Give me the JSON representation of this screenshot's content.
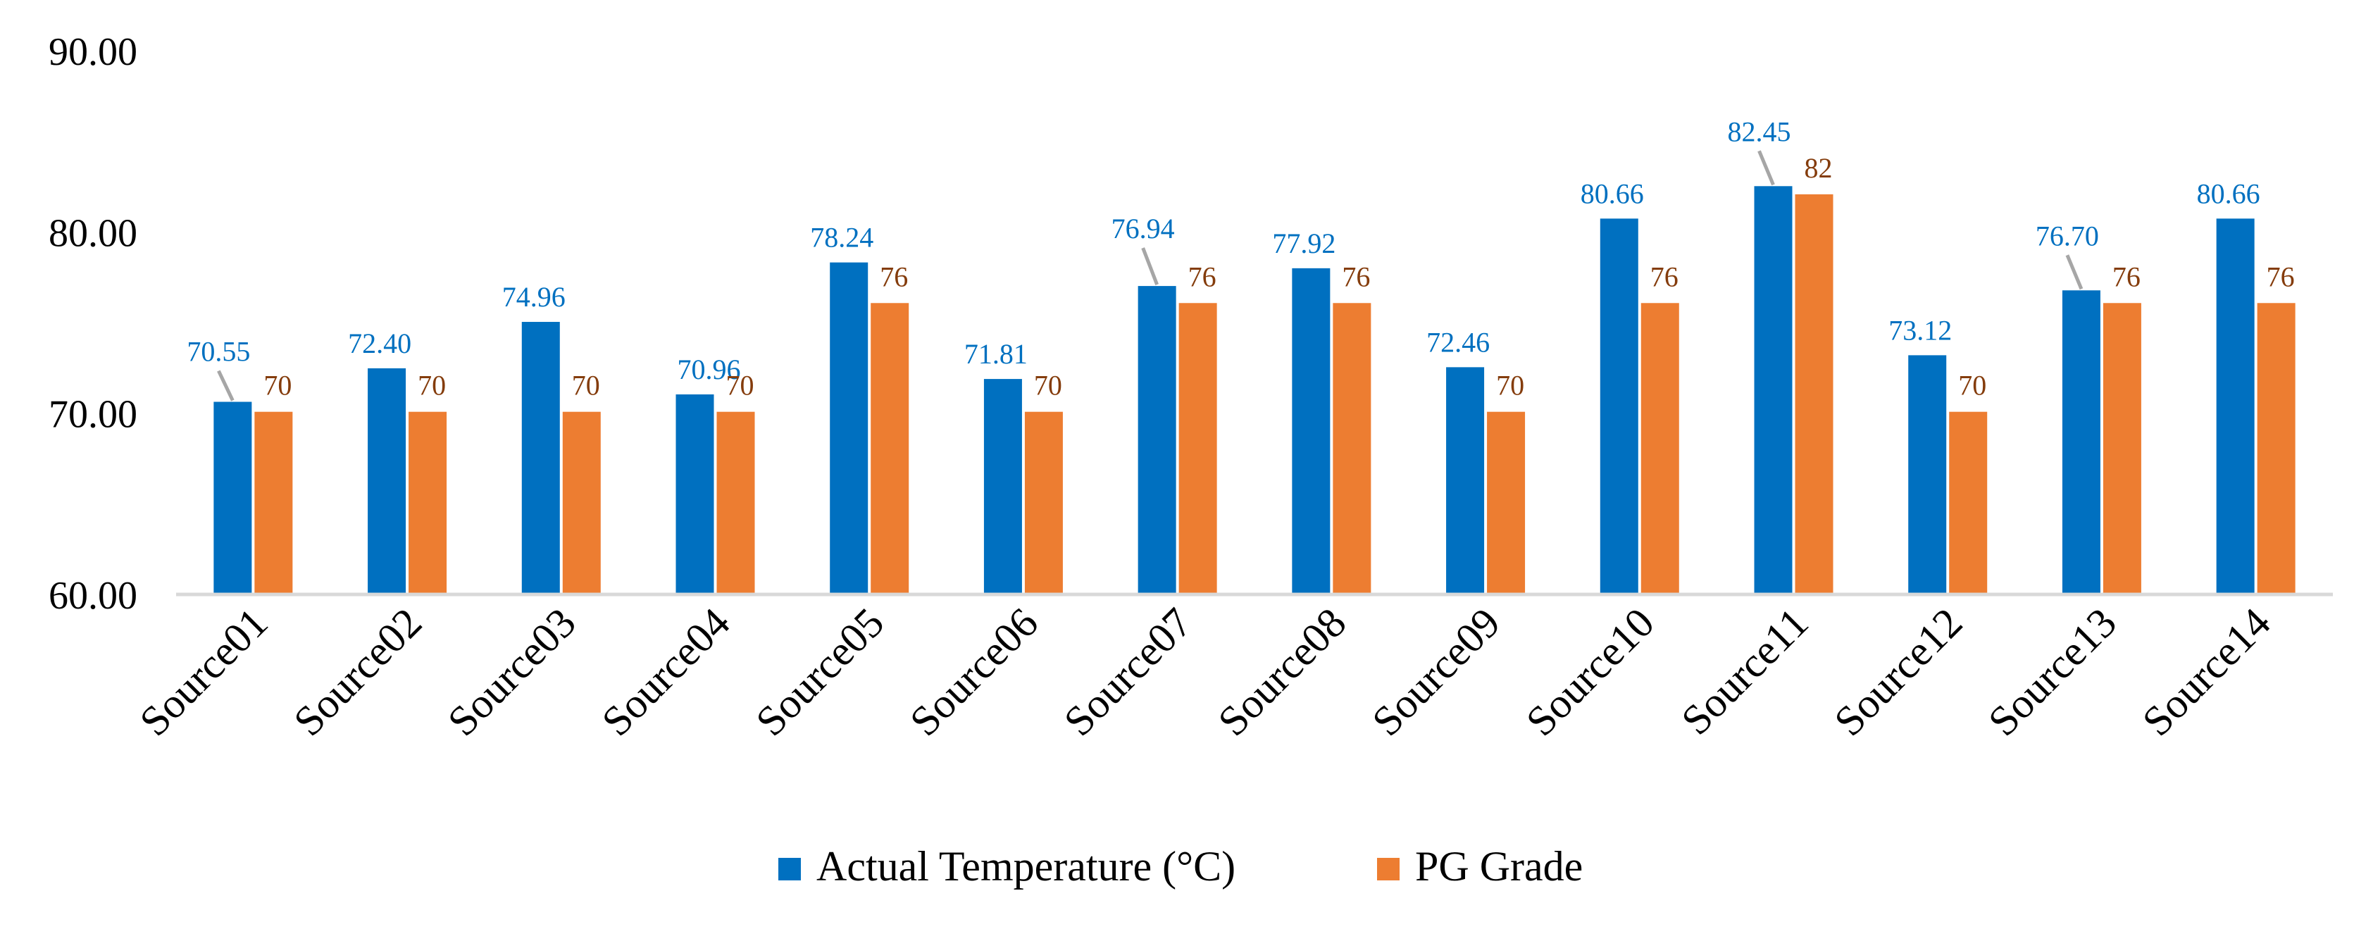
{
  "chart_data": {
    "type": "bar",
    "title": "",
    "xlabel": "",
    "ylabel": "",
    "ylim": [
      60,
      90
    ],
    "yticks": [
      60,
      70,
      80,
      90
    ],
    "ytick_labels": [
      "60.00",
      "70.00",
      "80.00",
      "90.00"
    ],
    "grid": false,
    "legend_position": "bottom-center",
    "categories": [
      "Source01",
      "Source02",
      "Source03",
      "Source04",
      "Source05",
      "Source06",
      "Source07",
      "Source08",
      "Source09",
      "Source10",
      "Source11",
      "Source12",
      "Source13",
      "Source14"
    ],
    "series": [
      {
        "name": "Actual Temperature (°C)",
        "color": "#0070C0",
        "label_color": "#0070C0",
        "values": [
          70.55,
          72.4,
          74.96,
          70.96,
          78.24,
          71.81,
          76.94,
          77.92,
          72.46,
          80.66,
          82.45,
          73.12,
          76.7,
          80.66
        ],
        "data_labels": [
          "70.55",
          "72.40",
          "74.96",
          "70.96",
          "78.24",
          "71.81",
          "76.94",
          "77.92",
          "72.46",
          "80.66",
          "82.45",
          "73.12",
          "76.70",
          "80.66"
        ]
      },
      {
        "name": "PG Grade",
        "color": "#ED7D31",
        "label_color": "#843C0C",
        "values": [
          70,
          70,
          70,
          70,
          76,
          70,
          76,
          76,
          70,
          76,
          82,
          70,
          76,
          76
        ],
        "data_labels": [
          "70",
          "70",
          "70",
          "70",
          "76",
          "70",
          "76",
          "76",
          "70",
          "76",
          "82",
          "70",
          "76",
          "76"
        ]
      }
    ],
    "axis_color": "#D9D9D9",
    "leader_line_color": "#A6A6A6"
  }
}
